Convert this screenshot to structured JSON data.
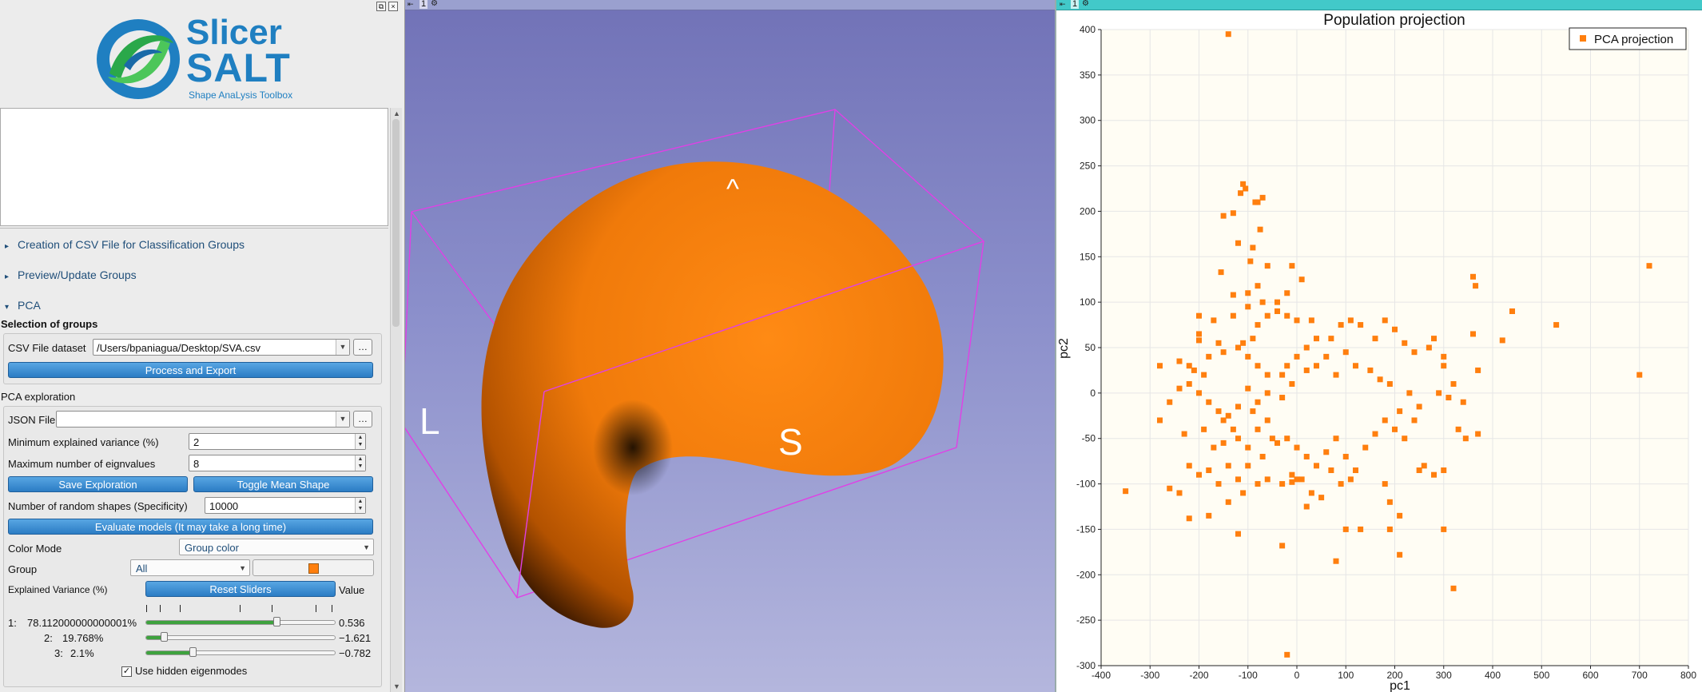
{
  "logo": {
    "line1": "Slicer",
    "line2": "SALT",
    "tagline": "Shape AnaLysis Toolbox"
  },
  "sections": {
    "csv_creation": "Creation of CSV File for Classification Groups",
    "preview": "Preview/Update Groups",
    "pca": "PCA"
  },
  "selection": {
    "title": "Selection of groups",
    "csv_label": "CSV File dataset",
    "csv_value": "/Users/bpaniagua/Desktop/SVA.csv",
    "process_button": "Process and Export"
  },
  "exploration": {
    "title": "PCA exploration",
    "json_label": "JSON File",
    "json_value": "",
    "min_var_label": "Minimum explained variance (%)",
    "min_var_value": "2",
    "max_eig_label": "Maximum number of eignvalues",
    "max_eig_value": "8",
    "save_button": "Save Exploration",
    "toggle_button": "Toggle Mean Shape",
    "random_label": "Number of random shapes (Specificity)",
    "random_value": "10000",
    "evaluate_button": "Evaluate models (It may take a long time)",
    "color_mode_label": "Color Mode",
    "color_mode_value": "Group color",
    "group_label": "Group",
    "group_value": "All",
    "group_color": "#ff7f0e",
    "ev_label": "Explained Variance (%)",
    "reset_button": "Reset Sliders",
    "value_header": "Value",
    "modes": [
      {
        "index": "1:",
        "variance": "78.112000000000001%",
        "value": "0.536",
        "level": 0.7
      },
      {
        "index": "2:",
        "variance": "19.768%",
        "value": "−1.621",
        "level": 0.08
      },
      {
        "index": "3:",
        "variance": "2.1%",
        "value": "−0.782",
        "level": 0.24
      }
    ],
    "hidden_label": "Use hidden eigenmodes",
    "hidden_checked": "✓"
  },
  "view3d": {
    "number": "1",
    "orientation": {
      "top": "^",
      "left": "L",
      "bottom": "S"
    },
    "shape_color": "#ff7f0e"
  },
  "plotview": {
    "number": "1"
  },
  "chart_data": {
    "type": "scatter",
    "title": "Population projection",
    "xlabel": "pc1",
    "ylabel": "pc2",
    "xlim": [
      -400,
      800
    ],
    "ylim": [
      -300,
      400
    ],
    "xticks": [
      -400,
      -300,
      -200,
      -100,
      0,
      100,
      200,
      300,
      400,
      500,
      600,
      700,
      800
    ],
    "yticks": [
      -300,
      -250,
      -200,
      -150,
      -100,
      -50,
      0,
      50,
      100,
      150,
      200,
      250,
      300,
      350,
      400
    ],
    "grid": true,
    "legend_position": "top-right",
    "series": [
      {
        "name": "PCA projection",
        "color": "#ff7f0e",
        "points": [
          [
            -140,
            395
          ],
          [
            -110,
            230
          ],
          [
            -105,
            225
          ],
          [
            -115,
            220
          ],
          [
            -70,
            215
          ],
          [
            -130,
            198
          ],
          [
            -80,
            210
          ],
          [
            -75,
            180
          ],
          [
            -85,
            210
          ],
          [
            -150,
            195
          ],
          [
            -90,
            160
          ],
          [
            -120,
            165
          ],
          [
            -155,
            133
          ],
          [
            -95,
            145
          ],
          [
            -60,
            140
          ],
          [
            -130,
            108
          ],
          [
            -70,
            100
          ],
          [
            -100,
            95
          ],
          [
            -40,
            100
          ],
          [
            -20,
            110
          ],
          [
            10,
            125
          ],
          [
            -10,
            140
          ],
          [
            -60,
            85
          ],
          [
            -80,
            75
          ],
          [
            -130,
            85
          ],
          [
            -200,
            85
          ],
          [
            -170,
            80
          ],
          [
            -100,
            110
          ],
          [
            -80,
            118
          ],
          [
            -40,
            90
          ],
          [
            -20,
            85
          ],
          [
            0,
            80
          ],
          [
            30,
            80
          ],
          [
            -90,
            60
          ],
          [
            -110,
            55
          ],
          [
            -200,
            65
          ],
          [
            -200,
            58
          ],
          [
            -240,
            35
          ],
          [
            -280,
            30
          ],
          [
            -220,
            30
          ],
          [
            -210,
            25
          ],
          [
            -190,
            20
          ],
          [
            -160,
            55
          ],
          [
            -150,
            45
          ],
          [
            -120,
            50
          ],
          [
            -100,
            40
          ],
          [
            -180,
            40
          ],
          [
            -80,
            30
          ],
          [
            -60,
            20
          ],
          [
            -30,
            20
          ],
          [
            -20,
            30
          ],
          [
            0,
            40
          ],
          [
            20,
            50
          ],
          [
            40,
            60
          ],
          [
            70,
            60
          ],
          [
            90,
            75
          ],
          [
            110,
            80
          ],
          [
            130,
            75
          ],
          [
            160,
            60
          ],
          [
            180,
            80
          ],
          [
            200,
            70
          ],
          [
            220,
            55
          ],
          [
            240,
            45
          ],
          [
            270,
            50
          ],
          [
            300,
            40
          ],
          [
            360,
            65
          ],
          [
            370,
            25
          ],
          [
            340,
            -10
          ],
          [
            310,
            -5
          ],
          [
            320,
            10
          ],
          [
            290,
            0
          ],
          [
            250,
            -15
          ],
          [
            230,
            0
          ],
          [
            210,
            -20
          ],
          [
            190,
            10
          ],
          [
            170,
            15
          ],
          [
            150,
            25
          ],
          [
            120,
            30
          ],
          [
            100,
            45
          ],
          [
            80,
            20
          ],
          [
            60,
            40
          ],
          [
            40,
            30
          ],
          [
            20,
            25
          ],
          [
            -10,
            10
          ],
          [
            -30,
            -5
          ],
          [
            -60,
            0
          ],
          [
            -80,
            -10
          ],
          [
            -100,
            5
          ],
          [
            -120,
            -15
          ],
          [
            -140,
            -25
          ],
          [
            -160,
            -20
          ],
          [
            -180,
            -10
          ],
          [
            -200,
            0
          ],
          [
            -220,
            10
          ],
          [
            -240,
            5
          ],
          [
            -260,
            -10
          ],
          [
            -280,
            -30
          ],
          [
            -230,
            -45
          ],
          [
            -190,
            -40
          ],
          [
            -150,
            -30
          ],
          [
            -120,
            -50
          ],
          [
            -100,
            -60
          ],
          [
            -80,
            -40
          ],
          [
            -60,
            -30
          ],
          [
            -40,
            -55
          ],
          [
            -20,
            -50
          ],
          [
            0,
            -60
          ],
          [
            20,
            -70
          ],
          [
            40,
            -80
          ],
          [
            60,
            -65
          ],
          [
            80,
            -50
          ],
          [
            100,
            -70
          ],
          [
            120,
            -85
          ],
          [
            140,
            -60
          ],
          [
            160,
            -45
          ],
          [
            180,
            -30
          ],
          [
            200,
            -40
          ],
          [
            220,
            -50
          ],
          [
            240,
            -30
          ],
          [
            260,
            -80
          ],
          [
            280,
            -90
          ],
          [
            300,
            -85
          ],
          [
            330,
            -40
          ],
          [
            345,
            -50
          ],
          [
            370,
            -45
          ],
          [
            -100,
            -80
          ],
          [
            -120,
            -95
          ],
          [
            -140,
            -80
          ],
          [
            -160,
            -100
          ],
          [
            -180,
            -85
          ],
          [
            -200,
            -90
          ],
          [
            -220,
            -80
          ],
          [
            -240,
            -110
          ],
          [
            -260,
            -105
          ],
          [
            -350,
            -108
          ],
          [
            -220,
            -138
          ],
          [
            -180,
            -135
          ],
          [
            -140,
            -120
          ],
          [
            -110,
            -110
          ],
          [
            -80,
            -100
          ],
          [
            -60,
            -95
          ],
          [
            -30,
            -100
          ],
          [
            -10,
            -90
          ],
          [
            10,
            -95
          ],
          [
            30,
            -110
          ],
          [
            50,
            -115
          ],
          [
            70,
            -85
          ],
          [
            90,
            -100
          ],
          [
            110,
            -95
          ],
          [
            180,
            -100
          ],
          [
            190,
            -120
          ],
          [
            210,
            -135
          ],
          [
            190,
            -150
          ],
          [
            130,
            -150
          ],
          [
            100,
            -150
          ],
          [
            80,
            -185
          ],
          [
            -30,
            -168
          ],
          [
            -120,
            -155
          ],
          [
            210,
            -178
          ],
          [
            320,
            -215
          ],
          [
            -20,
            -288
          ],
          [
            300,
            -150
          ],
          [
            20,
            -125
          ],
          [
            250,
            -85
          ],
          [
            0,
            -95
          ],
          [
            -10,
            -98
          ],
          [
            -50,
            -50
          ],
          [
            -70,
            -70
          ],
          [
            -90,
            -20
          ],
          [
            -130,
            -40
          ],
          [
            -150,
            -55
          ],
          [
            -170,
            -60
          ],
          [
            700,
            20
          ],
          [
            720,
            140
          ],
          [
            530,
            75
          ],
          [
            420,
            58
          ],
          [
            440,
            90
          ],
          [
            360,
            128
          ],
          [
            365,
            118
          ],
          [
            300,
            30
          ],
          [
            280,
            60
          ]
        ]
      }
    ]
  }
}
